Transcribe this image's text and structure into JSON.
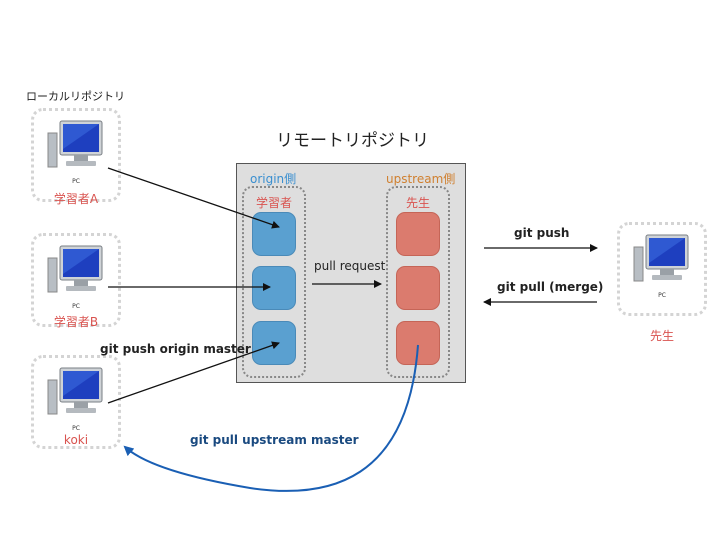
{
  "local_repo_label": "ローカルリポジトリ",
  "remote_repo_label": "リモートリポジトリ",
  "pc_label": "PC",
  "students": {
    "a": "学習者A",
    "b": "学習者B",
    "koki": "koki"
  },
  "teacher_name": "先生",
  "remote": {
    "origin_side": "origin側",
    "upstream_side": "upstream側",
    "origin_group": "学習者",
    "upstream_group": "先生"
  },
  "labels": {
    "pull_request": "pull request",
    "git_push_origin_master": "git push origin master",
    "git_pull_upstream_master": "git pull upstream master",
    "git_push": "git push",
    "git_pull_merge": "git pull (merge)"
  },
  "colors": {
    "origin_text": "#3a8fd0",
    "upstream_text": "#d08030",
    "group_label": "#d9534f",
    "blue_arrow": "#1a5fb4",
    "blue_label": "#1a4a80"
  }
}
